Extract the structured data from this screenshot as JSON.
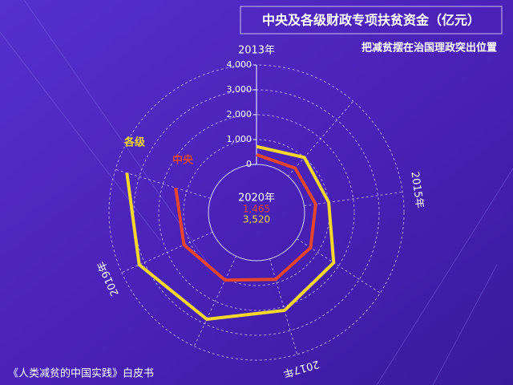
{
  "chart_data": {
    "type": "radar",
    "title": "中央及各级财政专项扶贫资金（亿元）",
    "subtitle": "把减贫摆在治国理政突出位置",
    "source": "《人类减贫的中国实践》白皮书",
    "categories": [
      "2013年",
      null,
      "2015年",
      null,
      "2017年",
      null,
      "2019年",
      "2020年"
    ],
    "series": [
      {
        "name": "中央",
        "color": "#e8452c",
        "values": [
          394,
          433,
          467,
          661,
          861,
          1061,
          1261,
          1465
        ],
        "value_labels": [
          null,
          null,
          null,
          null,
          null,
          null,
          null,
          "1,465"
        ]
      },
      {
        "name": "各级",
        "color": "#f5d82a",
        "values": [
          720,
          1000,
          1000,
          1770,
          2160,
          2800,
          3230,
          3520
        ],
        "value_labels": [
          null,
          null,
          null,
          null,
          null,
          null,
          null,
          "3,520"
        ]
      }
    ],
    "ylim": [
      0,
      4000
    ],
    "yticks": [
      0,
      {
        "value": 1000,
        "label": "1,000"
      },
      {
        "value": 2000,
        "label": "2,000"
      },
      {
        "value": 3000,
        "label": "3,000"
      },
      {
        "value": 4000,
        "label": "4,000"
      }
    ],
    "grid": true
  }
}
